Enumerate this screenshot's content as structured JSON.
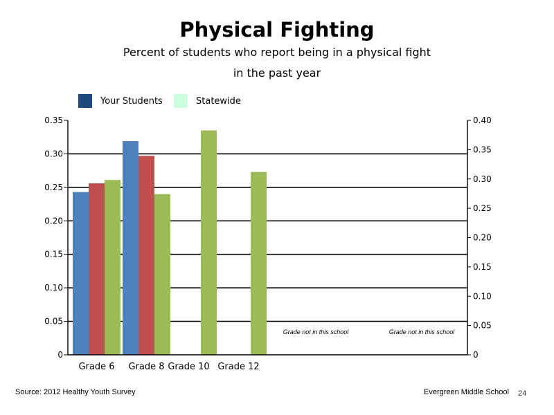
{
  "chart_data": {
    "type": "bar",
    "title": "Physical Fighting",
    "subtitle_line1": "Percent of students who report being in a physical fight",
    "subtitle_line2": "in the past year",
    "categories": [
      "Grade 6",
      "Grade 8",
      "Grade 10",
      "Grade 12"
    ],
    "empty_slot_notes": [
      "Grade not in this school",
      "Grade not in this school"
    ],
    "series": [
      {
        "color": "#4f81bd",
        "axis": "left",
        "values": [
          0.243,
          0.319,
          null,
          null
        ]
      },
      {
        "color": "#c0504d",
        "axis": "left",
        "values": [
          0.256,
          0.297,
          null,
          null
        ]
      },
      {
        "color": "#9bbb59",
        "axis": "left",
        "values": [
          0.261,
          0.24,
          0.335,
          0.273
        ]
      }
    ],
    "legend": [
      {
        "label": "Your Students",
        "color": "#1f497d"
      },
      {
        "label": "Statewide",
        "color": "#ccffdd"
      }
    ],
    "y_left": {
      "min": 0,
      "max": 0.35,
      "ticks": [
        "0",
        "0.05",
        "0.10",
        "0.15",
        "0.20",
        "0.25",
        "0.30",
        "0.35"
      ]
    },
    "y_right": {
      "min": 0,
      "max": 0.4,
      "ticks": [
        "0",
        "0.05",
        "0.10",
        "0.15",
        "0.20",
        "0.25",
        "0.30",
        "0.35",
        "0.40"
      ]
    },
    "gridlines": "horizontal",
    "legend_position": "top-left"
  },
  "footer": {
    "source": "Source: 2012 Healthy Youth Survey",
    "school": "Evergreen Middle School",
    "page_number": "24"
  }
}
